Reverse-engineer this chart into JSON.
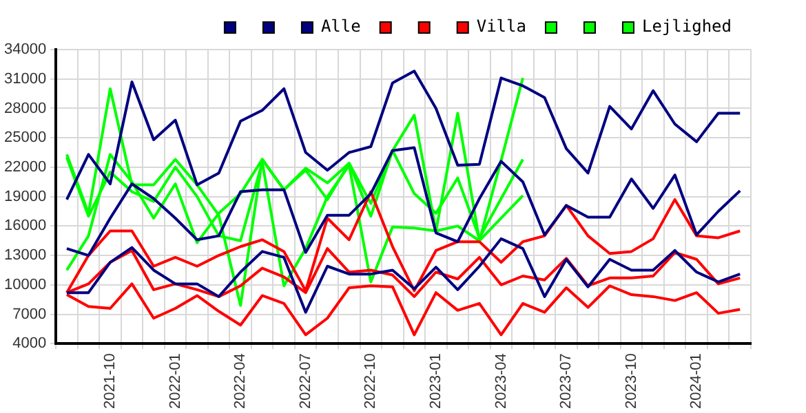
{
  "chart_data": {
    "type": "line",
    "categories": [
      null,
      null,
      "2021-10",
      null,
      null,
      "2022-01",
      null,
      null,
      "2022-04",
      null,
      null,
      "2022-07",
      null,
      null,
      "2022-10",
      null,
      null,
      "2023-01",
      null,
      null,
      "2023-04",
      null,
      null,
      "2023-07",
      null,
      null,
      "2023-10",
      null,
      null,
      "2024-01",
      null,
      null
    ],
    "series": [
      {
        "color": "#000080",
        "values": [
          18700,
          23300,
          20300,
          30700,
          24800,
          26800,
          20200,
          21400,
          26700,
          27800,
          30000,
          23500,
          21700,
          23500,
          24100,
          30600,
          31800,
          28000,
          22200,
          22300,
          31100,
          30300,
          29100,
          23900,
          21400,
          28200,
          25900,
          29800,
          26400,
          24600,
          27500,
          27500
        ]
      },
      {
        "color": "#000080",
        "values": [
          13700,
          13000,
          16800,
          20300,
          18800,
          16800,
          14600,
          15000,
          19500,
          19700,
          19700,
          13300,
          17100,
          17100,
          19300,
          23700,
          24000,
          15300,
          14400,
          18800,
          22600,
          20500,
          15100,
          18100,
          16900,
          16900,
          20800,
          17800,
          21200,
          15100,
          17500,
          19600
        ]
      },
      {
        "name": "Alle",
        "color": "#000080",
        "values": [
          9200,
          9200,
          12300,
          13800,
          11500,
          10100,
          10100,
          8800,
          11300,
          13400,
          12800,
          7200,
          11900,
          11100,
          11100,
          11500,
          9600,
          11800,
          9500,
          11900,
          14700,
          13700,
          8800,
          12600,
          9800,
          12600,
          11500,
          11500,
          13500,
          11300,
          10300,
          11100
        ]
      },
      {
        "color": "#ff0000",
        "values": [
          9200,
          13000,
          15500,
          15500,
          11900,
          12800,
          11900,
          13000,
          13900,
          14600,
          13400,
          9400,
          16800,
          14600,
          19500,
          13900,
          9400,
          13500,
          14400,
          14400,
          12300,
          14400,
          15000,
          18100,
          15000,
          13200,
          13400,
          14700,
          18700,
          15000,
          14800,
          15500
        ]
      },
      {
        "color": "#ff0000",
        "values": [
          9200,
          10100,
          12300,
          13500,
          9500,
          10100,
          9500,
          8800,
          9900,
          11700,
          10800,
          9200,
          13700,
          11300,
          11500,
          11000,
          8800,
          11300,
          10600,
          12800,
          10000,
          10900,
          10500,
          12700,
          9900,
          10700,
          10700,
          10900,
          13300,
          12600,
          10100,
          10700
        ]
      },
      {
        "name": "Villa",
        "color": "#ff0000",
        "values": [
          9000,
          7800,
          7600,
          10100,
          6600,
          7600,
          8900,
          7300,
          5900,
          8900,
          8100,
          4900,
          6600,
          9700,
          9900,
          9800,
          4900,
          9200,
          7400,
          8100,
          4900,
          8100,
          7200,
          9700,
          7700,
          9900,
          9000,
          8800,
          8400,
          9200,
          7100,
          7500
        ]
      },
      {
        "color": "#00ff00",
        "values": [
          23300,
          17300,
          30000,
          20200,
          20200,
          22800,
          20200,
          17100,
          7900,
          22800,
          19700,
          21900,
          20400,
          22400,
          17000,
          23700,
          27300,
          15500,
          27500,
          14500,
          22700,
          31100,
          null,
          null,
          null,
          null,
          null,
          null,
          null,
          null,
          null,
          null
        ]
      },
      {
        "color": "#00ff00",
        "values": [
          11500,
          15000,
          23300,
          20500,
          16800,
          20300,
          14300,
          17300,
          19300,
          22800,
          19700,
          21700,
          18700,
          22400,
          18300,
          23700,
          19300,
          17300,
          20900,
          14800,
          18800,
          22800,
          null,
          null,
          null,
          null,
          null,
          null,
          null,
          null,
          null,
          null
        ]
      },
      {
        "name": "Lejlighed",
        "color": "#00ff00",
        "values": [
          23000,
          17000,
          21500,
          19500,
          18500,
          22000,
          19000,
          15000,
          14500,
          22500,
          9900,
          13700,
          19000,
          22200,
          10300,
          15900,
          15800,
          15500,
          16000,
          14500,
          16800,
          19100,
          null,
          null,
          null,
          null,
          null,
          null,
          null,
          null,
          null,
          null
        ]
      }
    ],
    "ylim": [
      4000,
      34000
    ],
    "yticks": [
      4000,
      7000,
      10000,
      13000,
      16000,
      19000,
      22000,
      25000,
      28000,
      31000,
      34000
    ],
    "grid": true,
    "legend": "top right",
    "marker": "none",
    "line_style": "solid"
  }
}
